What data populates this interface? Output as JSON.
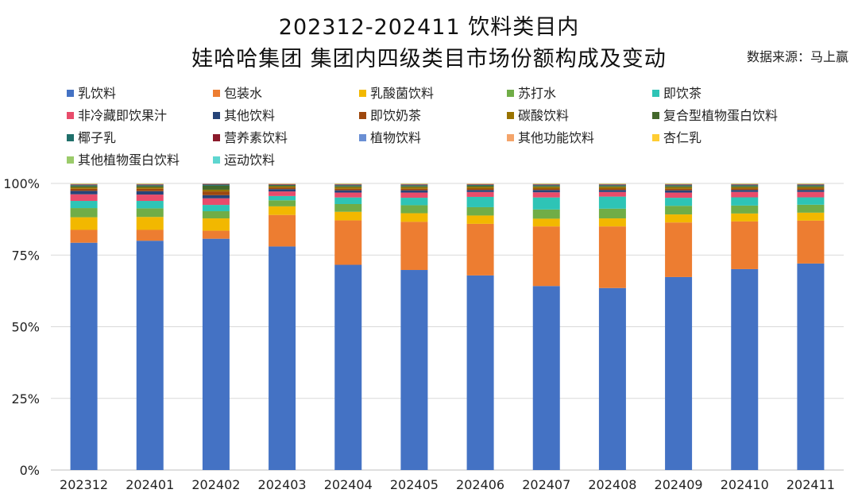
{
  "header": {
    "title_line1": "202312-202411 饮料类目内",
    "title_line2": "娃哈哈集团 集团内四级类目市场份额构成及变动",
    "source": "数据来源：马上赢"
  },
  "chart_data": {
    "type": "bar",
    "stacked": true,
    "percent": true,
    "title": "202312-202411 饮料类目内 娃哈哈集团 集团内四级类目市场份额构成及变动",
    "xlabel": "",
    "ylabel": "",
    "ylim": [
      0,
      100
    ],
    "yticks": [
      "0%",
      "25%",
      "50%",
      "75%",
      "100%"
    ],
    "grid": true,
    "legend_position": "top",
    "categories": [
      "202312",
      "202401",
      "202402",
      "202403",
      "202404",
      "202405",
      "202406",
      "202407",
      "202408",
      "202409",
      "202410",
      "202411"
    ],
    "series": [
      {
        "name": "乳饮料",
        "color": "#4472C4",
        "values": [
          79.3,
          80.0,
          80.7,
          78.0,
          71.6,
          69.8,
          67.9,
          64.2,
          63.5,
          67.2,
          70.8,
          72.7
        ]
      },
      {
        "name": "包装水",
        "color": "#ED7D31",
        "values": [
          4.5,
          3.8,
          2.8,
          11.0,
          15.5,
          16.8,
          18.0,
          20.8,
          21.5,
          19.0,
          16.8,
          15.1
        ]
      },
      {
        "name": "乳酸菌饮料",
        "color": "#F2B800",
        "values": [
          4.4,
          4.5,
          4.3,
          3.0,
          3.0,
          3.0,
          2.9,
          2.7,
          2.8,
          2.8,
          2.8,
          2.8
        ]
      },
      {
        "name": "苏打水",
        "color": "#70AD47",
        "values": [
          3.2,
          3.0,
          2.5,
          2.1,
          2.7,
          2.8,
          2.9,
          3.2,
          3.4,
          3.0,
          2.8,
          2.8
        ]
      },
      {
        "name": "即饮茶",
        "color": "#2EC4B6",
        "values": [
          2.5,
          2.6,
          2.2,
          1.5,
          2.3,
          2.6,
          3.6,
          4.2,
          4.2,
          2.8,
          2.9,
          2.6
        ]
      },
      {
        "name": "非冷藏即饮果汁",
        "color": "#E84C6B",
        "values": [
          2.3,
          2.2,
          2.3,
          1.6,
          1.7,
          1.8,
          1.7,
          1.8,
          1.6,
          1.8,
          1.9,
          1.9
        ]
      },
      {
        "name": "其他饮料",
        "color": "#264478",
        "values": [
          1.2,
          1.2,
          1.1,
          0.8,
          0.8,
          0.8,
          0.7,
          0.8,
          0.7,
          0.8,
          0.7,
          0.7
        ]
      },
      {
        "name": "即饮奶茶",
        "color": "#9E480E",
        "values": [
          0.7,
          0.8,
          1.3,
          0.5,
          0.5,
          0.5,
          0.5,
          0.5,
          0.5,
          0.5,
          0.5,
          0.5
        ]
      },
      {
        "name": "碳酸饮料",
        "color": "#997300",
        "values": [
          0.5,
          0.5,
          0.6,
          0.5,
          0.6,
          0.6,
          0.6,
          0.6,
          0.6,
          0.6,
          0.5,
          0.5
        ]
      },
      {
        "name": "复合型植物蛋白饮料",
        "color": "#43682B",
        "values": [
          0.5,
          0.5,
          1.4,
          0.3,
          0.4,
          0.4,
          0.4,
          0.3,
          0.3,
          0.4,
          0.4,
          0.4
        ]
      },
      {
        "name": "椰子乳",
        "color": "#1F6F6A",
        "values": [
          0.3,
          0.3,
          0.4,
          0.2,
          0.3,
          0.3,
          0.3,
          0.3,
          0.3,
          0.3,
          0.3,
          0.3
        ]
      },
      {
        "name": "营养素饮料",
        "color": "#8B1A2B",
        "values": [
          0.2,
          0.2,
          0.2,
          0.2,
          0.2,
          0.2,
          0.2,
          0.2,
          0.2,
          0.2,
          0.2,
          0.2
        ]
      },
      {
        "name": "植物饮料",
        "color": "#6A8FD4",
        "values": [
          0.1,
          0.1,
          0.1,
          0.1,
          0.1,
          0.1,
          0.1,
          0.1,
          0.1,
          0.1,
          0.1,
          0.1
        ]
      },
      {
        "name": "其他功能饮料",
        "color": "#F4A46A",
        "values": [
          0.1,
          0.1,
          0.1,
          0.1,
          0.1,
          0.1,
          0.1,
          0.1,
          0.1,
          0.1,
          0.1,
          0.1
        ]
      },
      {
        "name": "杏仁乳",
        "color": "#FFCD33",
        "values": [
          0.1,
          0.1,
          0.0,
          0.1,
          0.1,
          0.1,
          0.1,
          0.1,
          0.1,
          0.1,
          0.1,
          0.1
        ]
      },
      {
        "name": "其他植物蛋白饮料",
        "color": "#9BCB6A",
        "values": [
          0.1,
          0.1,
          0.0,
          0.0,
          0.1,
          0.1,
          0.0,
          0.1,
          0.1,
          0.1,
          0.1,
          0.1
        ]
      },
      {
        "name": "运动饮料",
        "color": "#5ED6D0",
        "values": [
          0.0,
          0.0,
          0.0,
          0.0,
          0.0,
          0.0,
          0.0,
          0.0,
          0.0,
          0.0,
          0.0,
          0.0
        ]
      }
    ]
  }
}
